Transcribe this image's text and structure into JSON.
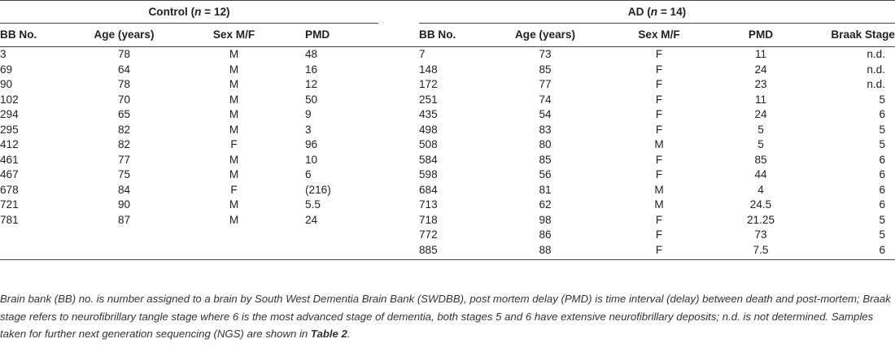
{
  "groups": {
    "control_label": "Control",
    "control_n": "(n = 12)",
    "ad_label": "AD",
    "ad_n": "(n = 14)"
  },
  "columns": {
    "control": [
      "BB No.",
      "Age (years)",
      "Sex M/F",
      "PMD"
    ],
    "ad": [
      "BB No.",
      "Age (years)",
      "Sex M/F",
      "PMD",
      "Braak Stage"
    ]
  },
  "rows": [
    {
      "c": [
        "3",
        "78",
        "M",
        "48"
      ],
      "a": [
        "7",
        "73",
        "F",
        "11",
        "n.d."
      ]
    },
    {
      "c": [
        "69",
        "64",
        "M",
        "16"
      ],
      "a": [
        "148",
        "85",
        "F",
        "24",
        "n.d."
      ]
    },
    {
      "c": [
        "90",
        "78",
        "M",
        "12"
      ],
      "a": [
        "172",
        "77",
        "F",
        "23",
        "n.d."
      ]
    },
    {
      "c": [
        "102",
        "70",
        "M",
        "50"
      ],
      "a": [
        "251",
        "74",
        "F",
        "11",
        "5"
      ]
    },
    {
      "c": [
        "294",
        "65",
        "M",
        "9"
      ],
      "a": [
        "435",
        "54",
        "F",
        "24",
        "6"
      ]
    },
    {
      "c": [
        "295",
        "82",
        "M",
        "3"
      ],
      "a": [
        "498",
        "83",
        "F",
        "5",
        "5"
      ]
    },
    {
      "c": [
        "412",
        "82",
        "F",
        "96"
      ],
      "a": [
        "508",
        "80",
        "M",
        "5",
        "5"
      ]
    },
    {
      "c": [
        "461",
        "77",
        "M",
        "10"
      ],
      "a": [
        "584",
        "85",
        "F",
        "85",
        "6"
      ]
    },
    {
      "c": [
        "467",
        "75",
        "M",
        "6"
      ],
      "a": [
        "598",
        "56",
        "F",
        "44",
        "6"
      ]
    },
    {
      "c": [
        "678",
        "84",
        "F",
        "(216)"
      ],
      "a": [
        "684",
        "81",
        "M",
        "4",
        "6"
      ]
    },
    {
      "c": [
        "721",
        "90",
        "M",
        "5.5"
      ],
      "a": [
        "713",
        "62",
        "M",
        "24.5",
        "6"
      ]
    },
    {
      "c": [
        "781",
        "87",
        "M",
        "24"
      ],
      "a": [
        "718",
        "98",
        "F",
        "21.25",
        "5"
      ]
    },
    {
      "c": [
        "",
        "",
        "",
        ""
      ],
      "a": [
        "772",
        "86",
        "F",
        "73",
        "5"
      ]
    },
    {
      "c": [
        "",
        "",
        "",
        ""
      ],
      "a": [
        "885",
        "88",
        "F",
        "7.5",
        "6"
      ]
    }
  ],
  "caption": {
    "text": "Brain bank (BB) no. is number assigned to a brain by South West Dementia Brain Bank (SWDBB), post mortem delay (PMD) is time interval (delay) between death and post-mortem; Braak stage refers to neurofibrillary tangle stage where 6 is the most advanced stage of dementia, both stages 5 and 6 have extensive neurofibrillary deposits; n.d. is not determined. Samples taken for further next generation sequencing (NGS) are shown in ",
    "ref": "Table 2",
    "end": "."
  }
}
